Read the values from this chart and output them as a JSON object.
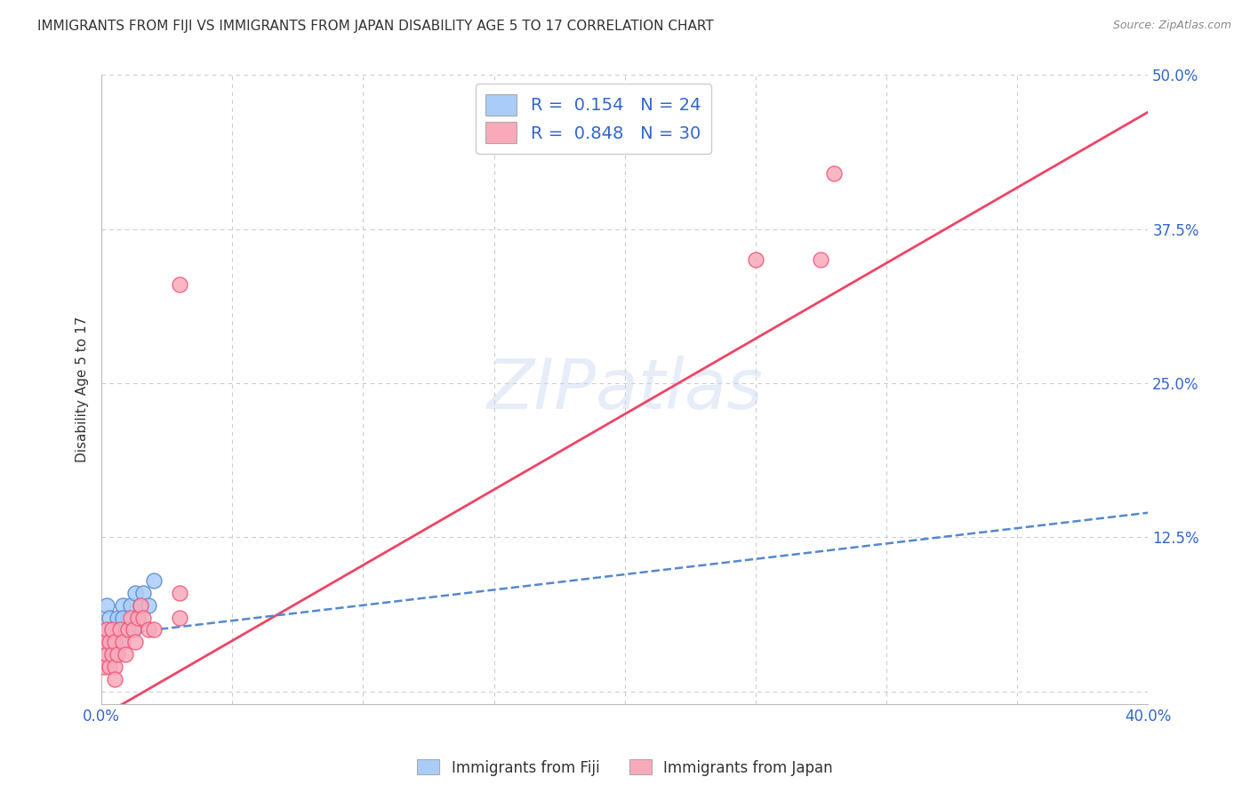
{
  "title": "IMMIGRANTS FROM FIJI VS IMMIGRANTS FROM JAPAN DISABILITY AGE 5 TO 17 CORRELATION CHART",
  "source": "Source: ZipAtlas.com",
  "ylabel": "Disability Age 5 to 17",
  "xlim": [
    0,
    0.4
  ],
  "ylim": [
    -0.01,
    0.5
  ],
  "xticks": [
    0.0,
    0.05,
    0.1,
    0.15,
    0.2,
    0.25,
    0.3,
    0.35,
    0.4
  ],
  "xticklabels": [
    "0.0%",
    "",
    "",
    "",
    "",
    "",
    "",
    "",
    "40.0%"
  ],
  "yticks": [
    0.0,
    0.125,
    0.25,
    0.375,
    0.5
  ],
  "yticklabels": [
    "",
    "12.5%",
    "25.0%",
    "37.5%",
    "50.0%"
  ],
  "fiji_color": "#aaccf8",
  "japan_color": "#f8aabb",
  "fiji_edge": "#5588cc",
  "japan_edge": "#ee5577",
  "fiji_trend_color": "#5588cc",
  "japan_trend_color": "#ee4466",
  "grid_color": "#cccccc",
  "background_color": "#ffffff",
  "watermark": "ZIPatlas",
  "fiji_R": 0.154,
  "fiji_N": 24,
  "japan_R": 0.848,
  "japan_N": 30,
  "fiji_x": [
    0.001,
    0.002,
    0.002,
    0.003,
    0.003,
    0.004,
    0.005,
    0.006,
    0.007,
    0.008,
    0.009,
    0.01,
    0.011,
    0.012,
    0.013,
    0.015,
    0.016,
    0.018,
    0.02,
    0.005,
    0.007,
    0.002,
    0.008,
    0.004
  ],
  "fiji_y": [
    0.04,
    0.05,
    0.07,
    0.04,
    0.06,
    0.05,
    0.04,
    0.06,
    0.05,
    0.07,
    0.05,
    0.06,
    0.07,
    0.05,
    0.08,
    0.07,
    0.08,
    0.07,
    0.09,
    0.03,
    0.04,
    0.03,
    0.06,
    0.04
  ],
  "japan_x": [
    0.001,
    0.001,
    0.002,
    0.002,
    0.003,
    0.003,
    0.004,
    0.004,
    0.005,
    0.005,
    0.006,
    0.007,
    0.008,
    0.009,
    0.01,
    0.011,
    0.012,
    0.013,
    0.014,
    0.015,
    0.016,
    0.018,
    0.02,
    0.03,
    0.03,
    0.25,
    0.275,
    0.28,
    0.03,
    0.005
  ],
  "japan_y": [
    0.02,
    0.04,
    0.03,
    0.05,
    0.02,
    0.04,
    0.03,
    0.05,
    0.02,
    0.04,
    0.03,
    0.05,
    0.04,
    0.03,
    0.05,
    0.06,
    0.05,
    0.04,
    0.06,
    0.07,
    0.06,
    0.05,
    0.05,
    0.08,
    0.06,
    0.35,
    0.35,
    0.42,
    0.33,
    0.01
  ],
  "japan_trend_x0": 0.0,
  "japan_trend_y0": -0.02,
  "japan_trend_x1": 0.4,
  "japan_trend_y1": 0.47,
  "fiji_trend_x0": 0.0,
  "fiji_trend_y0": 0.045,
  "fiji_trend_x1": 0.4,
  "fiji_trend_y1": 0.145
}
